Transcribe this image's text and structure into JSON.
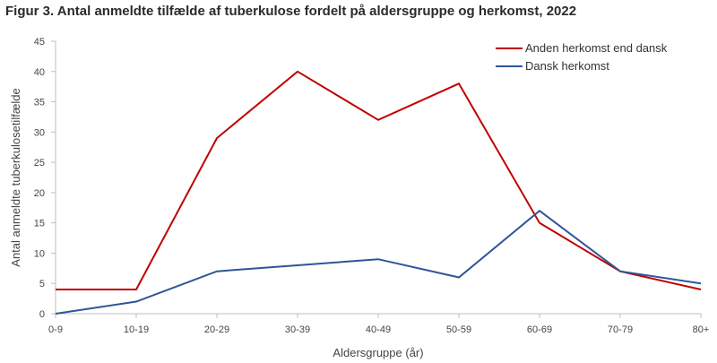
{
  "page": {
    "title": "Figur 3. Antal anmeldte tilfælde af tuberkulose fordelt på aldersgruppe og herkomst, 2022"
  },
  "chart_data": {
    "type": "line",
    "title": "Figur 3. Antal anmeldte tilfælde af tuberkulose fordelt på aldersgruppe og herkomst, 2022",
    "xlabel": "Aldersgruppe  (år)",
    "ylabel": "Antal anmeldte tuberkulosetilfælde",
    "categories": [
      "0-9",
      "10-19",
      "20-29",
      "30-39",
      "40-49",
      "50-59",
      "60-69",
      "70-79",
      "80+"
    ],
    "ylim": [
      0,
      45
    ],
    "yticks": [
      "0",
      "5",
      "10",
      "15",
      "20",
      "25",
      "30",
      "35",
      "40",
      "45"
    ],
    "grid": false,
    "legend_position": "top-right",
    "series": [
      {
        "name": "Anden herkomst end dansk",
        "color": "#c00000",
        "values": [
          4,
          4,
          29,
          40,
          32,
          38,
          15,
          7,
          4
        ]
      },
      {
        "name": "Dansk herkomst",
        "color": "#2f5597",
        "values": [
          0,
          2,
          7,
          8,
          9,
          6,
          17,
          7,
          5
        ]
      }
    ]
  }
}
